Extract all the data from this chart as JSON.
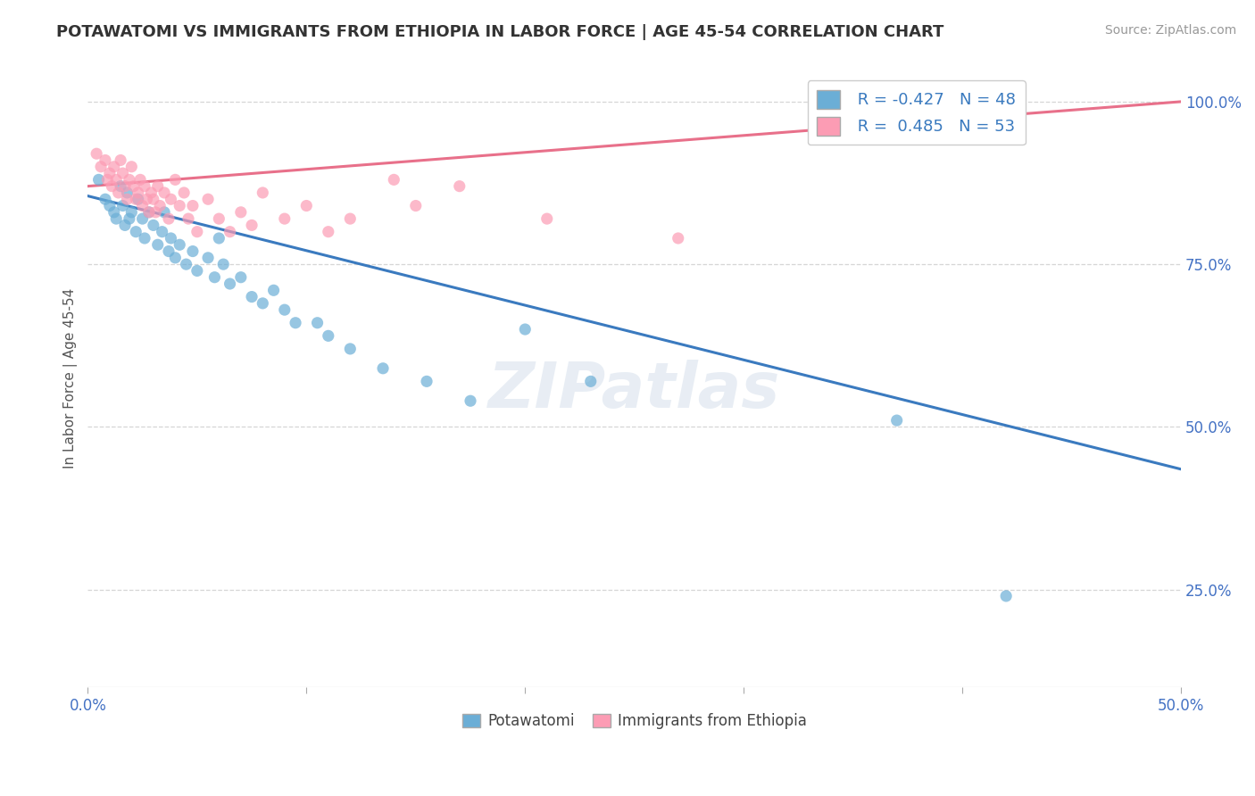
{
  "title": "POTAWATOMI VS IMMIGRANTS FROM ETHIOPIA IN LABOR FORCE | AGE 45-54 CORRELATION CHART",
  "source": "Source: ZipAtlas.com",
  "ylabel": "In Labor Force | Age 45-54",
  "xmin": 0.0,
  "xmax": 0.5,
  "ymin": 0.1,
  "ymax": 1.05,
  "x_tick_positions": [
    0.0,
    0.1,
    0.2,
    0.3,
    0.4,
    0.5
  ],
  "x_tick_labels": [
    "0.0%",
    "",
    "",
    "",
    "",
    "50.0%"
  ],
  "y_ticks_right": [
    0.25,
    0.5,
    0.75,
    1.0
  ],
  "y_tick_labels_right": [
    "25.0%",
    "50.0%",
    "75.0%",
    "100.0%"
  ],
  "blue_R": "-0.427",
  "blue_N": "48",
  "pink_R": "0.485",
  "pink_N": "53",
  "blue_color": "#6baed6",
  "pink_color": "#fc9cb4",
  "blue_line_color": "#3a7abf",
  "pink_line_color": "#e8708a",
  "watermark": "ZIPatlas",
  "legend_blue_label": "Potawatomi",
  "legend_pink_label": "Immigrants from Ethiopia",
  "blue_scatter_x": [
    0.005,
    0.008,
    0.01,
    0.012,
    0.013,
    0.015,
    0.016,
    0.017,
    0.018,
    0.019,
    0.02,
    0.022,
    0.023,
    0.025,
    0.026,
    0.028,
    0.03,
    0.032,
    0.034,
    0.035,
    0.037,
    0.038,
    0.04,
    0.042,
    0.045,
    0.048,
    0.05,
    0.055,
    0.058,
    0.06,
    0.062,
    0.065,
    0.07,
    0.075,
    0.08,
    0.085,
    0.09,
    0.095,
    0.105,
    0.11,
    0.12,
    0.135,
    0.155,
    0.175,
    0.2,
    0.23,
    0.37,
    0.42
  ],
  "blue_scatter_y": [
    0.88,
    0.85,
    0.84,
    0.83,
    0.82,
    0.87,
    0.84,
    0.81,
    0.86,
    0.82,
    0.83,
    0.8,
    0.85,
    0.82,
    0.79,
    0.83,
    0.81,
    0.78,
    0.8,
    0.83,
    0.77,
    0.79,
    0.76,
    0.78,
    0.75,
    0.77,
    0.74,
    0.76,
    0.73,
    0.79,
    0.75,
    0.72,
    0.73,
    0.7,
    0.69,
    0.71,
    0.68,
    0.66,
    0.66,
    0.64,
    0.62,
    0.59,
    0.57,
    0.54,
    0.65,
    0.57,
    0.51,
    0.24
  ],
  "pink_scatter_x": [
    0.004,
    0.006,
    0.008,
    0.009,
    0.01,
    0.011,
    0.012,
    0.013,
    0.014,
    0.015,
    0.016,
    0.017,
    0.018,
    0.019,
    0.02,
    0.021,
    0.022,
    0.023,
    0.024,
    0.025,
    0.026,
    0.027,
    0.028,
    0.029,
    0.03,
    0.031,
    0.032,
    0.033,
    0.035,
    0.037,
    0.038,
    0.04,
    0.042,
    0.044,
    0.046,
    0.048,
    0.05,
    0.055,
    0.06,
    0.065,
    0.07,
    0.075,
    0.08,
    0.09,
    0.1,
    0.11,
    0.12,
    0.14,
    0.15,
    0.17,
    0.21,
    0.27,
    0.35
  ],
  "pink_scatter_y": [
    0.92,
    0.9,
    0.91,
    0.88,
    0.89,
    0.87,
    0.9,
    0.88,
    0.86,
    0.91,
    0.89,
    0.87,
    0.85,
    0.88,
    0.9,
    0.87,
    0.85,
    0.86,
    0.88,
    0.84,
    0.87,
    0.85,
    0.83,
    0.86,
    0.85,
    0.83,
    0.87,
    0.84,
    0.86,
    0.82,
    0.85,
    0.88,
    0.84,
    0.86,
    0.82,
    0.84,
    0.8,
    0.85,
    0.82,
    0.8,
    0.83,
    0.81,
    0.86,
    0.82,
    0.84,
    0.8,
    0.82,
    0.88,
    0.84,
    0.87,
    0.82,
    0.79,
    0.98
  ]
}
